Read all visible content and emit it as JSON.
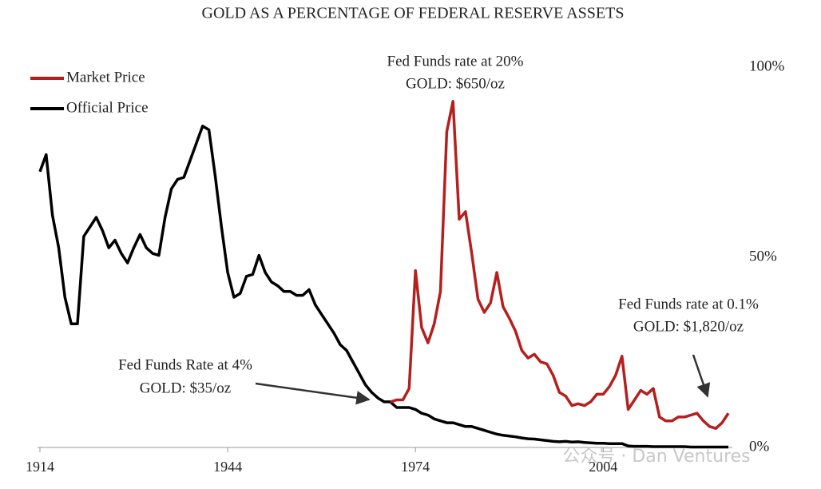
{
  "chart_data": {
    "type": "line",
    "title": "GOLD AS A PERCENTAGE OF FEDERAL RESERVE ASSETS",
    "xlim": [
      1914,
      2024
    ],
    "xticks": [
      1914,
      1944,
      1974,
      2004
    ],
    "ylim": [
      0,
      100
    ],
    "yticks": [
      {
        "value": 0,
        "label": "0%"
      },
      {
        "value": 50,
        "label": "50%"
      },
      {
        "value": 100,
        "label": "100%"
      }
    ],
    "legend": "upper left",
    "annotations": [
      "Fed Funds rate at 20%",
      "GOLD: $650/oz",
      "Fed Funds Rate at 4%",
      "GOLD: $35/oz",
      "Fed Funds rate at 0.1%",
      "GOLD: $1,820/oz"
    ],
    "watermark": "公众号 · Dan Ventures",
    "series": [
      {
        "name": "Official Price",
        "color": "#000000",
        "x": [
          1914,
          1915,
          1916,
          1917,
          1918,
          1919,
          1920,
          1921,
          1922,
          1923,
          1924,
          1925,
          1926,
          1927,
          1928,
          1929,
          1930,
          1931,
          1932,
          1933,
          1934,
          1935,
          1936,
          1937,
          1938,
          1939,
          1940,
          1941,
          1942,
          1943,
          1944,
          1945,
          1946,
          1947,
          1948,
          1949,
          1950,
          1951,
          1952,
          1953,
          1954,
          1955,
          1956,
          1957,
          1958,
          1959,
          1960,
          1961,
          1962,
          1963,
          1964,
          1965,
          1966,
          1967,
          1968,
          1969,
          1970,
          1971,
          1972,
          1973,
          1974,
          1975,
          1976,
          1977,
          1978,
          1979,
          1980,
          1981,
          1982,
          1983,
          1984,
          1985,
          1986,
          1987,
          1988,
          1989,
          1990,
          1991,
          1992,
          1993,
          1994,
          1995,
          1996,
          1997,
          1998,
          1999,
          2000,
          2001,
          2002,
          2003,
          2004,
          2005,
          2006,
          2007,
          2008,
          2009,
          2010,
          2011,
          2012,
          2013,
          2014,
          2015,
          2016,
          2017,
          2018,
          2019,
          2020,
          2021,
          2022,
          2023,
          2024
        ],
        "values": [
          72.5,
          77,
          61,
          52.5,
          39.5,
          32.5,
          32.5,
          55.5,
          58,
          60.5,
          57,
          52.5,
          54.5,
          51,
          48.5,
          52.5,
          56,
          52.5,
          51,
          50.5,
          60.5,
          68,
          70.5,
          71,
          75.5,
          80,
          84.5,
          83.5,
          71.5,
          58,
          46,
          39.5,
          40.5,
          45,
          45.5,
          50.5,
          46,
          43.5,
          42.5,
          41,
          41,
          40,
          40,
          41.5,
          37.5,
          35,
          32.5,
          30,
          27,
          25.5,
          22.5,
          19.5,
          16.5,
          14.5,
          13,
          12,
          12,
          10.5,
          10.5,
          10.5,
          10,
          9,
          8.5,
          7.5,
          7,
          6.5,
          6.5,
          6,
          5.5,
          5.5,
          5,
          4.5,
          4,
          3.5,
          3.2,
          3,
          2.8,
          2.5,
          2.3,
          2.2,
          2,
          1.8,
          1.6,
          1.5,
          1.6,
          1.4,
          1.5,
          1.3,
          1.2,
          1.1,
          1.1,
          1,
          1,
          1,
          0.4,
          0.3,
          0.3,
          0.3,
          0.2,
          0.2,
          0.2,
          0.2,
          0.2,
          0.2,
          0.1,
          0.1,
          0.1,
          0.1,
          0.1,
          0.1,
          0.1
        ]
      },
      {
        "name": "Market Price",
        "color": "#b5201e",
        "x": [
          1970,
          1971,
          1972,
          1973,
          1974,
          1975,
          1976,
          1977,
          1978,
          1979,
          1980,
          1981,
          1982,
          1983,
          1984,
          1985,
          1986,
          1987,
          1988,
          1989,
          1990,
          1991,
          1992,
          1993,
          1994,
          1995,
          1996,
          1997,
          1998,
          1999,
          2000,
          2001,
          2002,
          2003,
          2004,
          2005,
          2006,
          2007,
          2008,
          2009,
          2010,
          2011,
          2012,
          2013,
          2014,
          2015,
          2016,
          2017,
          2018,
          2019,
          2020,
          2021,
          2022,
          2023,
          2024
        ],
        "values": [
          12,
          12.5,
          12.5,
          15.5,
          46.5,
          31.5,
          27.5,
          32.5,
          41,
          83,
          91,
          60,
          62,
          51,
          39,
          35.5,
          38,
          46,
          37,
          34,
          30.5,
          25.5,
          23.5,
          24.5,
          22.5,
          22,
          19,
          14.5,
          13.5,
          11,
          11.5,
          11,
          12,
          14,
          14,
          16,
          19,
          24,
          10,
          12.5,
          15,
          14,
          15.5,
          8,
          7,
          7,
          8,
          8,
          8.5,
          9,
          7,
          5.5,
          5,
          6.5,
          9
        ]
      }
    ]
  }
}
